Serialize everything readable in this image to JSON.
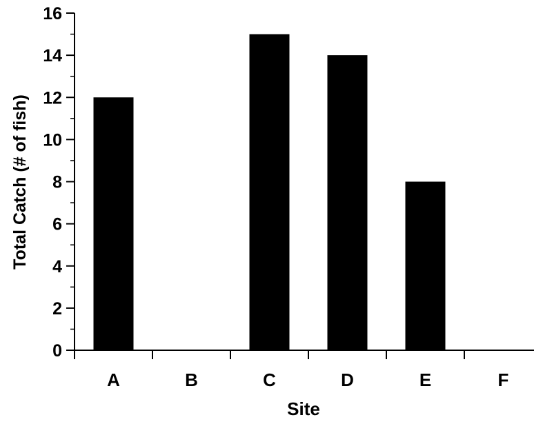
{
  "chart_data": {
    "type": "bar",
    "title": "",
    "xlabel": "Site",
    "ylabel": "Total Catch (# of fish)",
    "categories": [
      "A",
      "B",
      "C",
      "D",
      "E",
      "F"
    ],
    "values": [
      12,
      0,
      15,
      14,
      8,
      0
    ],
    "ylim": [
      0,
      16
    ],
    "yticks": [
      0,
      2,
      4,
      6,
      8,
      10,
      12,
      14,
      16
    ],
    "grid": false,
    "legend": "none",
    "colors": {
      "bar": "#000000",
      "axis": "#000000",
      "background": "#ffffff"
    }
  }
}
